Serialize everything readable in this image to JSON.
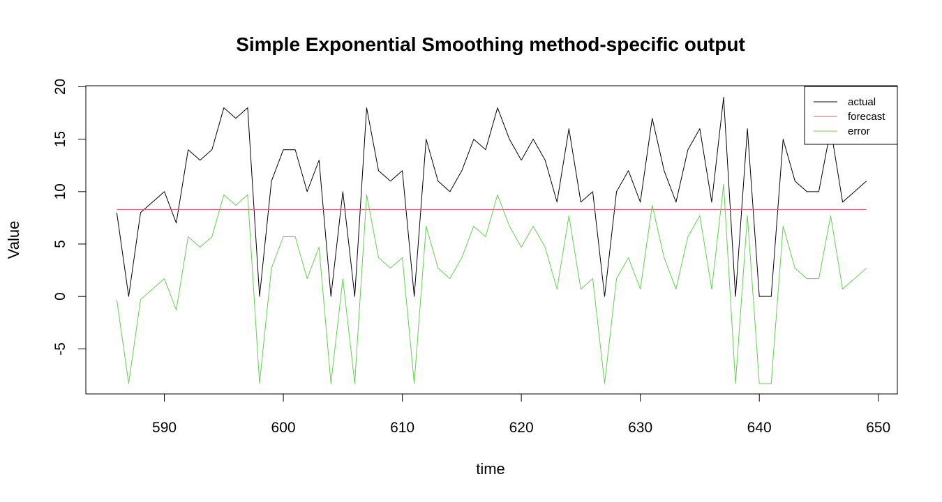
{
  "chart_data": {
    "type": "line",
    "title": "Simple Exponential Smoothing method-specific output",
    "xlabel": "time",
    "ylabel": "Value",
    "xlim": [
      583.4,
      651.6
    ],
    "ylim": [
      -9.3,
      20.1
    ],
    "x_ticks": [
      590,
      600,
      610,
      620,
      630,
      640,
      650
    ],
    "y_ticks": [
      -5,
      0,
      5,
      10,
      15,
      20
    ],
    "grid": false,
    "legend_position": "top-right",
    "x": [
      586,
      587,
      588,
      589,
      590,
      591,
      592,
      593,
      594,
      595,
      596,
      597,
      598,
      599,
      600,
      601,
      602,
      603,
      604,
      605,
      606,
      607,
      608,
      609,
      610,
      611,
      612,
      613,
      614,
      615,
      616,
      617,
      618,
      619,
      620,
      621,
      622,
      623,
      624,
      625,
      626,
      627,
      628,
      629,
      630,
      631,
      632,
      633,
      634,
      635,
      636,
      637,
      638,
      639,
      640,
      641,
      642,
      643,
      644,
      645,
      646,
      647,
      648,
      649
    ],
    "series": [
      {
        "name": "actual",
        "color": "#000000",
        "values": [
          8,
          0,
          8,
          9,
          10,
          7,
          14,
          13,
          14,
          18,
          17,
          18,
          0,
          11,
          14,
          14,
          10,
          13,
          0,
          10,
          0,
          18,
          12,
          11,
          12,
          0,
          15,
          11,
          10,
          12,
          15,
          14,
          18,
          15,
          13,
          15,
          13,
          9,
          16,
          9,
          10,
          0,
          10,
          12,
          9,
          17,
          12,
          9,
          14,
          16,
          9,
          19,
          0,
          16,
          0,
          0,
          15,
          11,
          10,
          10,
          16,
          9,
          10,
          11
        ]
      },
      {
        "name": "forecast",
        "color": "#DF536B",
        "values": [
          8.3,
          8.3,
          8.3,
          8.3,
          8.3,
          8.3,
          8.3,
          8.3,
          8.3,
          8.3,
          8.3,
          8.3,
          8.3,
          8.3,
          8.3,
          8.3,
          8.3,
          8.3,
          8.3,
          8.3,
          8.3,
          8.3,
          8.3,
          8.3,
          8.3,
          8.3,
          8.3,
          8.3,
          8.3,
          8.3,
          8.3,
          8.3,
          8.3,
          8.3,
          8.3,
          8.3,
          8.3,
          8.3,
          8.3,
          8.3,
          8.3,
          8.3,
          8.3,
          8.3,
          8.3,
          8.3,
          8.3,
          8.3,
          8.3,
          8.3,
          8.3,
          8.3,
          8.3,
          8.3,
          8.3,
          8.3,
          8.3,
          8.3,
          8.3,
          8.3,
          8.3,
          8.3,
          8.3,
          8.3
        ]
      },
      {
        "name": "error",
        "color": "#61D04F",
        "values": [
          -0.3,
          -8.3,
          -0.3,
          0.7,
          1.7,
          -1.3,
          5.7,
          4.7,
          5.7,
          9.7,
          8.7,
          9.7,
          -8.3,
          2.7,
          5.7,
          5.7,
          1.7,
          4.7,
          -8.3,
          1.7,
          -8.3,
          9.7,
          3.7,
          2.7,
          3.7,
          -8.3,
          6.7,
          2.7,
          1.7,
          3.7,
          6.7,
          5.7,
          9.7,
          6.7,
          4.7,
          6.7,
          4.7,
          0.7,
          7.7,
          0.7,
          1.7,
          -8.3,
          1.7,
          3.7,
          0.7,
          8.7,
          3.7,
          0.7,
          5.7,
          7.7,
          0.7,
          10.7,
          -8.3,
          7.7,
          -8.3,
          -8.3,
          6.7,
          2.7,
          1.7,
          1.7,
          7.7,
          0.7,
          1.7,
          2.7
        ]
      }
    ]
  }
}
